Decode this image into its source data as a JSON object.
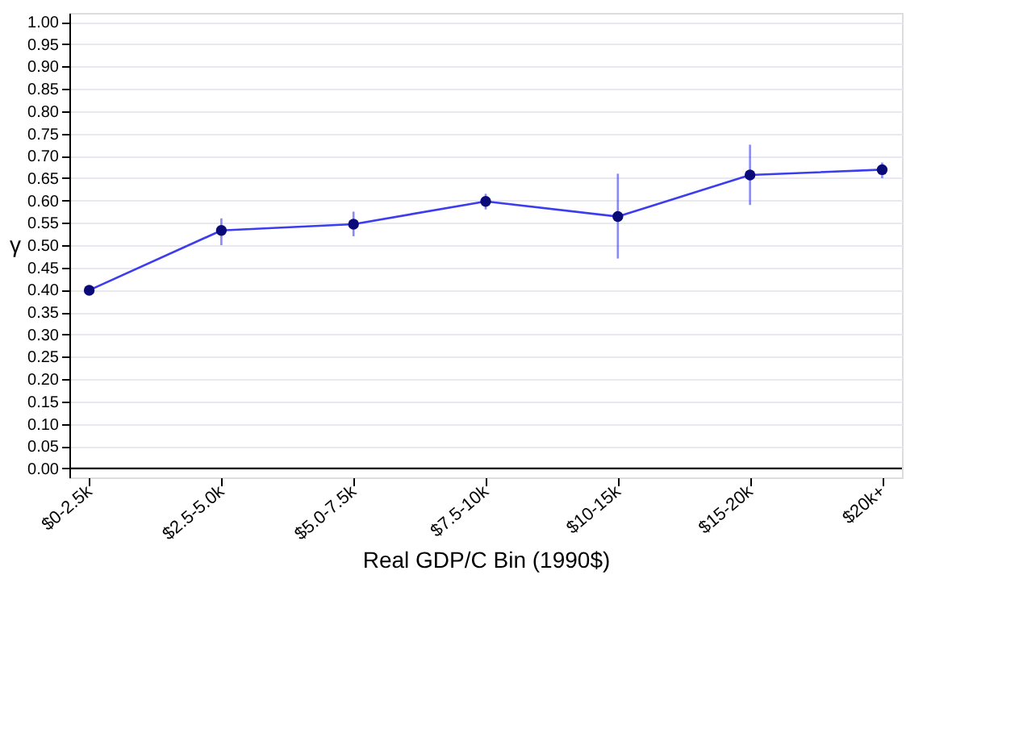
{
  "chart_data": {
    "type": "line",
    "xlabel": "Real GDP/C Bin (1990$)",
    "ylabel": "γ",
    "categories": [
      "$0-2.5k",
      "$2.5-5.0k",
      "$5.0-7.5k",
      "$7.5-10k",
      "$10-15k",
      "$15-20k",
      "$20k+"
    ],
    "series": [
      {
        "color": "#3c3cf0",
        "colors": [
          "#0a0a78",
          "#0a0a78",
          "#0a0a78",
          "#0a0a78",
          "#0a0a78",
          "#0a0a78",
          "#0a0a78"
        ],
        "values": [
          0.399,
          0.533,
          0.547,
          0.598,
          0.564,
          0.657,
          0.669
        ],
        "errors": [
          null,
          [
            0.5,
            0.56
          ],
          [
            0.52,
            0.575
          ],
          [
            0.58,
            0.615
          ],
          [
            0.47,
            0.66
          ],
          [
            0.59,
            0.725
          ],
          [
            0.65,
            0.685
          ]
        ]
      }
    ],
    "ylim": [
      -0.02,
      1.02
    ],
    "yticks": [
      {
        "value": 0,
        "label": "0.00"
      },
      {
        "value": 0.05,
        "label": "0.05"
      },
      {
        "value": 0.1,
        "label": "0.10"
      },
      {
        "value": 0.15,
        "label": "0.15"
      },
      {
        "value": 0.2,
        "label": "0.20"
      },
      {
        "value": 0.25,
        "label": "0.25"
      },
      {
        "value": 0.3,
        "label": "0.30"
      },
      {
        "value": 0.35,
        "label": "0.35"
      },
      {
        "value": 0.4,
        "label": "0.40"
      },
      {
        "value": 0.45,
        "label": "0.45"
      },
      {
        "value": 0.5,
        "label": "0.50"
      },
      {
        "value": 0.55,
        "label": "0.55"
      },
      {
        "value": 0.6,
        "label": "0.60"
      },
      {
        "value": 0.65,
        "label": "0.65"
      },
      {
        "value": 0.7,
        "label": "0.70"
      },
      {
        "value": 0.75,
        "label": "0.75"
      },
      {
        "value": 0.8,
        "label": "0.80"
      },
      {
        "value": 0.85,
        "label": "0.85"
      },
      {
        "value": 0.9,
        "label": "0.90"
      },
      {
        "value": 0.95,
        "label": "0.95"
      },
      {
        "value": 1,
        "label": "1.00"
      }
    ],
    "ref_lines": [
      {
        "axis": "y",
        "value": 0,
        "color": "#000000"
      }
    ],
    "grid": "y",
    "marker": "circle",
    "line_style": "solid"
  }
}
